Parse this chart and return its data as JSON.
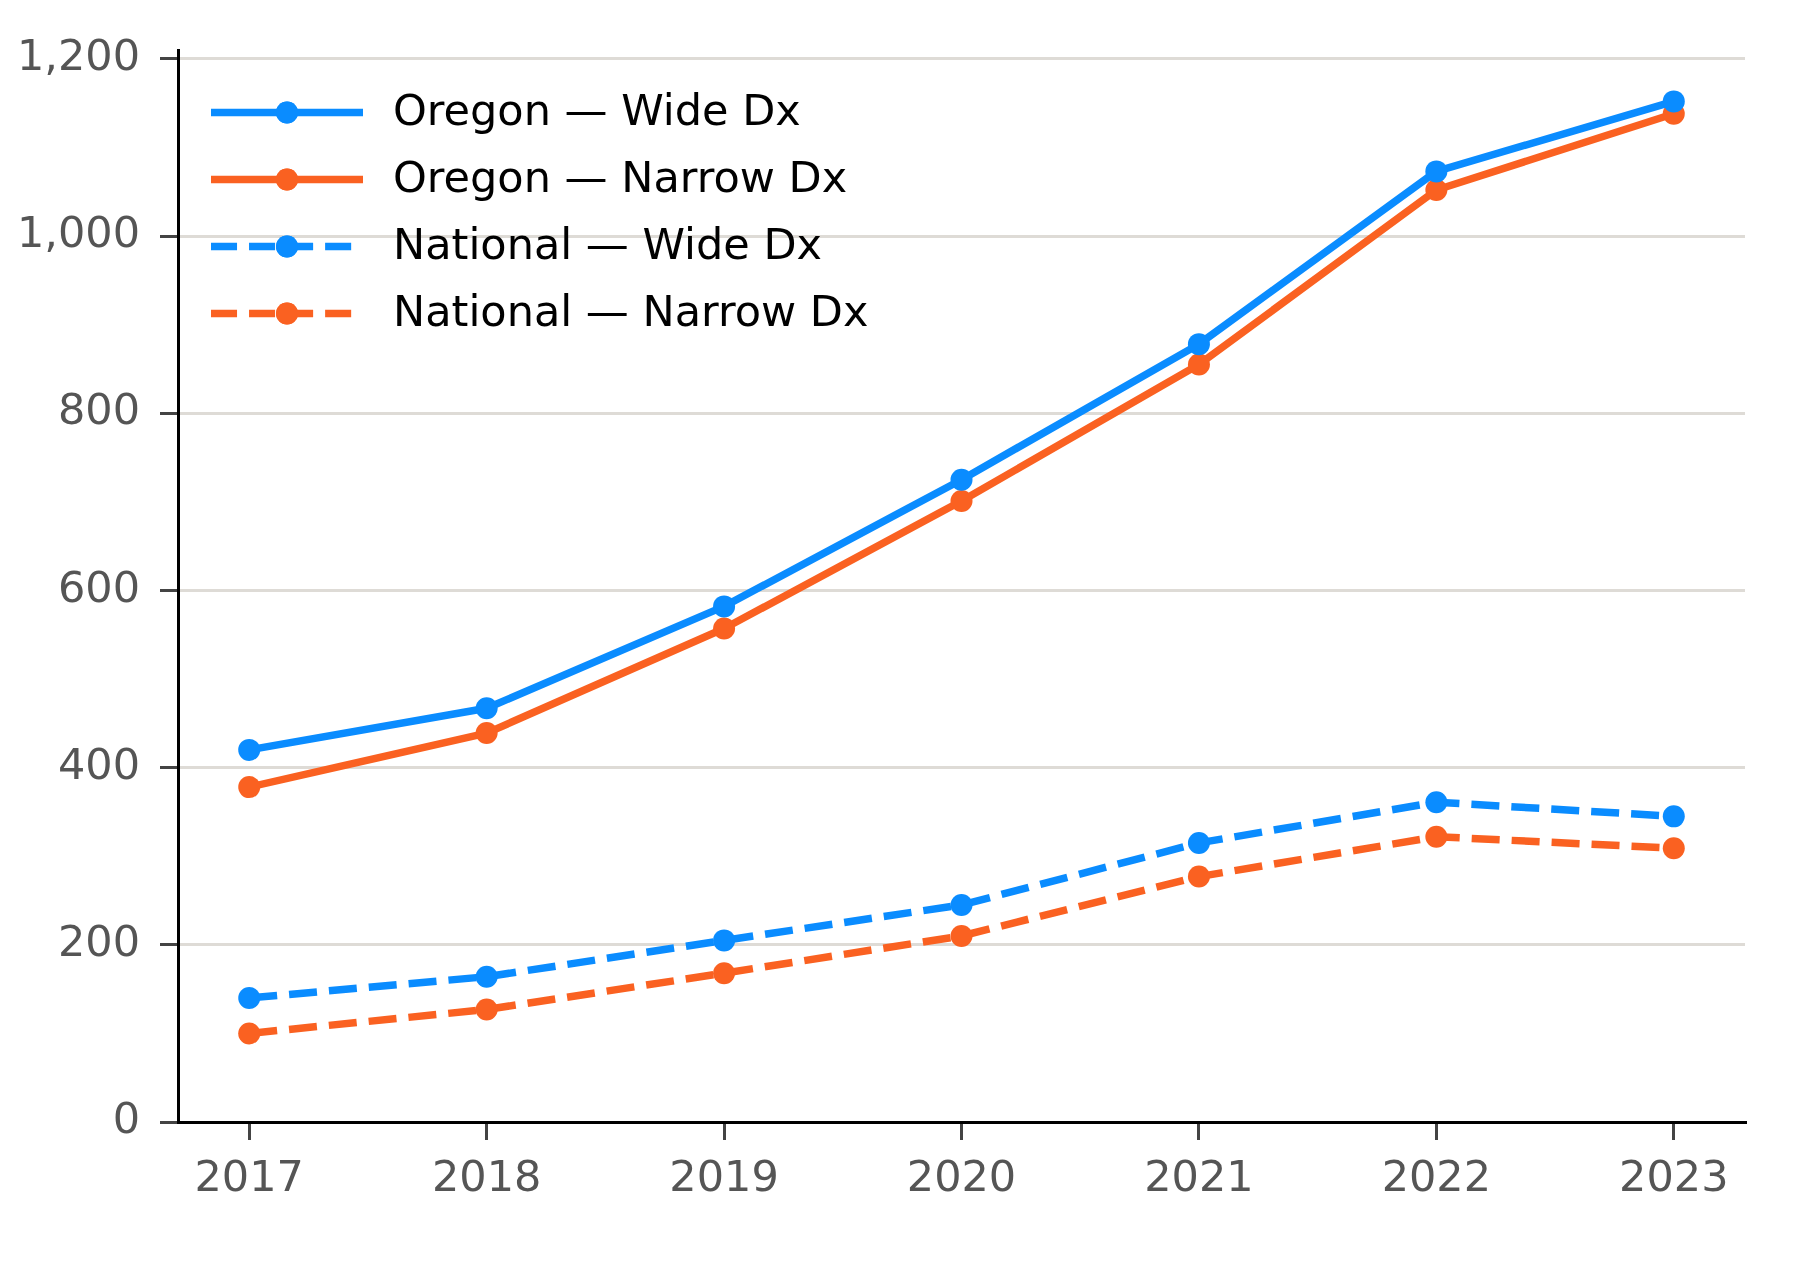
{
  "chart_data": {
    "type": "line",
    "x": [
      2017,
      2018,
      2019,
      2020,
      2021,
      2022,
      2023
    ],
    "xlim": [
      2016.7,
      2023.3
    ],
    "xticks": [
      2017,
      2018,
      2019,
      2020,
      2021,
      2022,
      2023
    ],
    "ylim": [
      0,
      1210
    ],
    "yticks": [
      0,
      200,
      400,
      600,
      800,
      {
        "value": 1000,
        "label": "1,000"
      },
      {
        "value": 1200,
        "label": "1,200"
      }
    ],
    "grid": "y",
    "legend": "top left",
    "marker": "circle",
    "series": [
      {
        "name": "Oregon — Wide Dx",
        "color": "#0a8cff",
        "line_style": "solid",
        "values": [
          420,
          467,
          582,
          725,
          878,
          1073,
          1152
        ]
      },
      {
        "name": "Oregon — Narrow Dx",
        "color": "#fa6121",
        "line_style": "solid",
        "values": [
          378,
          439,
          557,
          701,
          855,
          1052,
          1138
        ]
      },
      {
        "name": "National — Wide Dx",
        "color": "#0a8cff",
        "line_style": "dashed",
        "values": [
          140,
          164,
          205,
          245,
          315,
          361,
          345
        ]
      },
      {
        "name": "National — Narrow Dx",
        "color": "#fa6121",
        "line_style": "dashed",
        "values": [
          100,
          127,
          168,
          210,
          277,
          322,
          309
        ]
      }
    ]
  }
}
